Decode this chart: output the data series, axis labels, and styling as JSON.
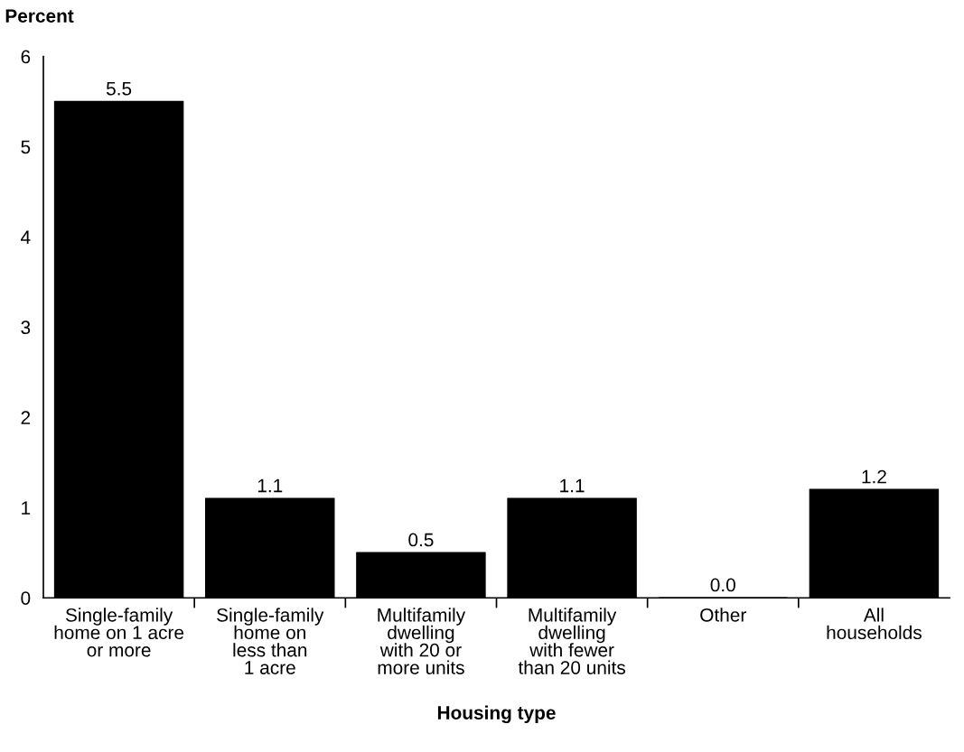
{
  "chart_data": {
    "type": "bar",
    "ylabel": "Percent",
    "xlabel": "Housing type",
    "categories": [
      "Single-family\nhome on 1 acre\nor more",
      "Single-family\nhome on\nless than\n1 acre",
      "Multifamily\ndwelling\nwith 20 or\nmore units",
      "Multifamily\ndwelling\nwith fewer\nthan 20 units",
      "Other",
      "All\nhouseholds"
    ],
    "values": [
      5.5,
      1.1,
      0.5,
      1.1,
      0.0,
      1.2
    ],
    "value_labels": [
      "5.5",
      "1.1",
      "0.5",
      "1.1",
      "0.0",
      "1.2"
    ],
    "color": "#000000",
    "ylim": [
      0,
      6
    ],
    "yticks": [
      0,
      1,
      2,
      3,
      4,
      5,
      6
    ],
    "grid": false,
    "legend": false
  }
}
